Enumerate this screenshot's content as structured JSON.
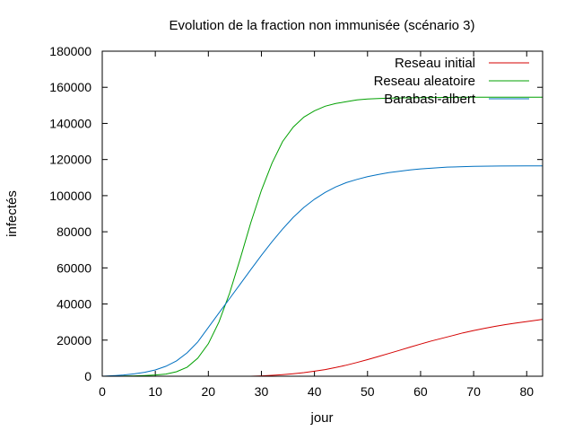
{
  "chart_data": {
    "type": "line",
    "title": "Evolution de la fraction non immunisée (scénario 3)",
    "xlabel": "jour",
    "ylabel": "infectés",
    "xlim": [
      0,
      83
    ],
    "ylim": [
      0,
      180000
    ],
    "x_ticks": [
      0,
      10,
      20,
      30,
      40,
      50,
      60,
      70,
      80
    ],
    "y_ticks": [
      0,
      20000,
      40000,
      60000,
      80000,
      100000,
      120000,
      140000,
      160000,
      180000
    ],
    "grid": false,
    "legend_position": "top-right",
    "series": [
      {
        "name": "Reseau initial",
        "color": "#d40000",
        "x": [
          28,
          30,
          32,
          34,
          36,
          38,
          40,
          42,
          44,
          46,
          48,
          50,
          52,
          54,
          56,
          58,
          60,
          62,
          64,
          66,
          68,
          70,
          72,
          74,
          76,
          78,
          80,
          82,
          83
        ],
        "y": [
          0,
          200,
          500,
          900,
          1400,
          2000,
          2800,
          3700,
          4800,
          6100,
          7600,
          9200,
          10900,
          12600,
          14300,
          16100,
          17800,
          19500,
          21000,
          22500,
          24000,
          25300,
          26500,
          27600,
          28600,
          29500,
          30300,
          31100,
          31500
        ]
      },
      {
        "name": "Reseau aleatoire",
        "color": "#00a000",
        "x": [
          0,
          2,
          4,
          6,
          8,
          10,
          12,
          14,
          16,
          18,
          20,
          22,
          24,
          26,
          28,
          30,
          32,
          34,
          36,
          38,
          40,
          42,
          44,
          46,
          48,
          50,
          52,
          54,
          56,
          58,
          60,
          65,
          70,
          75,
          80,
          83
        ],
        "y": [
          0,
          0,
          100,
          200,
          400,
          700,
          1200,
          2500,
          5000,
          10000,
          18000,
          30000,
          46000,
          65000,
          85000,
          103000,
          118000,
          130000,
          138000,
          143500,
          147000,
          149500,
          151000,
          152000,
          153000,
          153500,
          153800,
          154000,
          154100,
          154200,
          154300,
          154400,
          154500,
          154500,
          154500,
          154500
        ]
      },
      {
        "name": "Barabasi-albert",
        "color": "#0070c0",
        "x": [
          0,
          2,
          4,
          6,
          8,
          10,
          12,
          14,
          16,
          18,
          20,
          22,
          24,
          26,
          28,
          30,
          32,
          34,
          36,
          38,
          40,
          42,
          44,
          46,
          48,
          50,
          52,
          54,
          56,
          58,
          60,
          65,
          70,
          75,
          80,
          83
        ],
        "y": [
          0,
          300,
          700,
          1300,
          2200,
          3500,
          5500,
          8500,
          13000,
          19000,
          27000,
          35000,
          43000,
          51000,
          59000,
          67000,
          74500,
          81500,
          88000,
          93500,
          98000,
          101800,
          104800,
          107200,
          109000,
          110500,
          111700,
          112700,
          113500,
          114200,
          114800,
          115800,
          116200,
          116400,
          116500,
          116500
        ]
      }
    ]
  }
}
